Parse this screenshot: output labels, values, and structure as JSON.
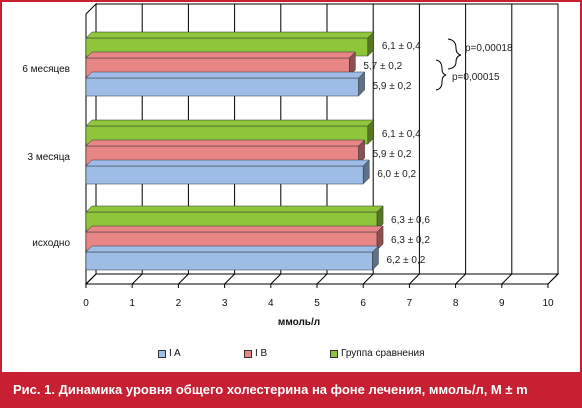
{
  "colors": {
    "series_a": "#9dbde7",
    "series_b": "#e88585",
    "series_c": "#8fc53a",
    "accent": "#c62032"
  },
  "caption": {
    "prefix": "Рис. 1.",
    "text": "Динамика уровня общего холестерина на фоне лечения, ммоль/л, М ± m"
  },
  "chart_data": {
    "type": "bar",
    "orientation": "horizontal",
    "style": "3d",
    "categories": [
      "6 месяцев",
      "3 месяца",
      "исходно"
    ],
    "series": [
      {
        "name": "Группа сравнения",
        "values": [
          6.1,
          6.1,
          6.3
        ],
        "labels": [
          "6,1 ± 0,4",
          "6,1  ± 0,4",
          "6,3 ± 0,6"
        ]
      },
      {
        "name": "I B",
        "values": [
          5.7,
          5.9,
          6.3
        ],
        "labels": [
          "5,7 ± 0,2",
          "5,9  ± 0,2",
          "6,3  ± 0,2"
        ]
      },
      {
        "name": "I A",
        "values": [
          5.9,
          6.0,
          6.2
        ],
        "labels": [
          "5,9  ± 0,2",
          "6,0  ± 0,2",
          "6,2 ± 0,2"
        ]
      }
    ],
    "xlabel": "ммоль/л",
    "xlim": [
      0,
      10
    ],
    "xticks": [
      "0",
      "1",
      "2",
      "3",
      "4",
      "5",
      "6",
      "7",
      "8",
      "9",
      "10"
    ],
    "grid": true,
    "legend_position": "bottom",
    "legend": [
      "I A",
      "I B",
      "Группа сравнения"
    ],
    "annotations": [
      "p=0,00018",
      "p=0,00015"
    ]
  }
}
